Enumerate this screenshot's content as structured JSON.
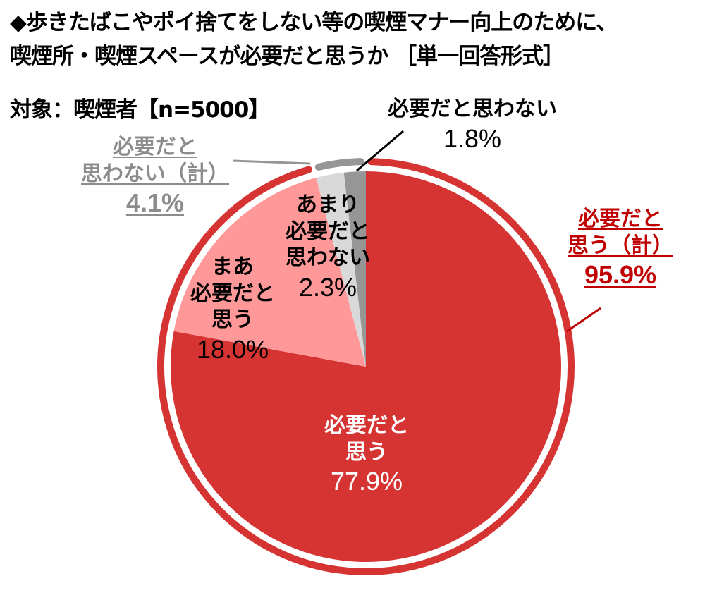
{
  "title": {
    "line1": "◆歩きたばこやポイ捨てをしない等の喫煙マナー向上のために、",
    "line2": "喫煙所・喫煙スペースが必要だと思うか ［単一回答形式］"
  },
  "subtitle": "対象：喫煙者【n=5000】",
  "colors": {
    "need": "#D63333",
    "somewhat_need": "#FF9999",
    "not_really": "#D9D9D9",
    "not_need": "#969696",
    "total_need_ring": "#D63333",
    "total_not_ring": "#969696",
    "total_need_text": "#C00000",
    "total_not_text": "#8C8C8C"
  },
  "labels": {
    "need": {
      "line1": "必要だと",
      "line2": "思う",
      "pct": "77.9%"
    },
    "somewhat_need": {
      "line1": "まあ",
      "line2": "必要だと",
      "line3": "思う",
      "pct": "18.0%"
    },
    "not_really": {
      "line1": "あまり",
      "line2": "必要だと",
      "line3": "思わない",
      "pct": "2.3%"
    },
    "not_need": {
      "line1": "必要だと思わない",
      "pct": "1.8%"
    },
    "total_need": {
      "line1": "必要だと",
      "line2": "思う（計）",
      "pct": "95.9%"
    },
    "total_not": {
      "line1": "必要だと",
      "line2": "思わない（計）",
      "pct": "4.1%"
    }
  },
  "chart_data": {
    "type": "pie",
    "title": "歩きたばこやポイ捨てをしない等の喫煙マナー向上のために、喫煙所・喫煙スペースが必要だと思うか［単一回答形式］",
    "subtitle": "対象：喫煙者【n=5000】",
    "start_angle": "12 o'clock",
    "direction": "clockwise",
    "categories": [
      "必要だと思う",
      "まあ必要だと思う",
      "あまり必要だと思わない",
      "必要だと思わない"
    ],
    "values": [
      77.9,
      18.0,
      2.3,
      1.8
    ],
    "unit": "%",
    "colors": [
      "#D63333",
      "#FF9999",
      "#D9D9D9",
      "#969696"
    ],
    "groups": [
      {
        "name": "必要だと思う（計）",
        "value": 95.9,
        "members": [
          "必要だと思う",
          "まあ必要だと思う"
        ],
        "color": "#D63333"
      },
      {
        "name": "必要だと思わない（計）",
        "value": 4.1,
        "members": [
          "あまり必要だと思わない",
          "必要だと思わない"
        ],
        "color": "#969696"
      }
    ],
    "legend": "none (direct labels)"
  }
}
